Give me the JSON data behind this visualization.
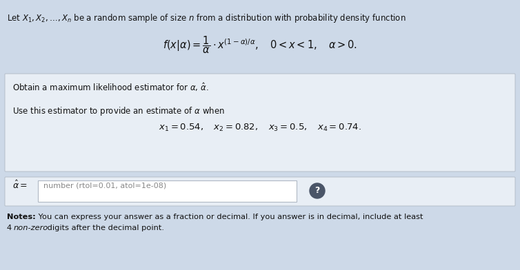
{
  "bg_color": "#cdd9e8",
  "box_color": "#dce6f1",
  "input_bg_color": "#cdd9e8",
  "white_box_color": "#dce6f1",
  "field_box_color": "#ffffff",
  "border_color": "#b0b8c4",
  "text_color": "#111111",
  "gray_text_color": "#888888",
  "line1": "Let $X_1, X_2, \\ldots, X_n$ be a random sample of size $n$ from a distribution with probability density function",
  "formula": "$f(x|\\alpha) = \\dfrac{1}{\\alpha} \\cdot x^{(1-\\alpha)/\\alpha}, \\quad 0 < x < 1, \\quad \\alpha > 0.$",
  "task1": "Obtain a maximum likelihood estimator for $\\alpha$, $\\hat{\\alpha}$.",
  "task2": "Use this estimator to provide an estimate of $\\alpha$ when",
  "values": "$x_1 = 0.54, \\quad x_2 = 0.82, \\quad x_3 = 0.5, \\quad x_4 = 0.74.$",
  "answer_label": "$\\hat{\\alpha} =$",
  "placeholder": "number (rtol=0.01, atol=1e-08)",
  "notes_bold": "Notes:",
  "notes_rest": " You can express your answer as a fraction or decimal. If you answer is in decimal, include at least",
  "notes_line2": "4 ",
  "notes_line2_italic": "non-zero",
  "notes_line2_rest": " digits after the decimal point.",
  "fig_width": 7.54,
  "fig_height": 3.92,
  "dpi": 100
}
